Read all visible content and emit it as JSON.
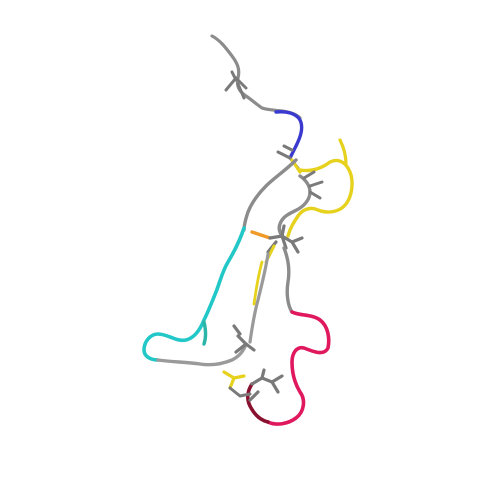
{
  "scene": {
    "background": "#ffffff",
    "subject": "protein-backbone-ribbon",
    "colors": {
      "gray": "#8c8c8c",
      "dark_gray": "#6a6a6a",
      "blue": "#3a3ad0",
      "yellow": "#e6d21c",
      "orange": "#f09a2a",
      "cyan": "#22c7c7",
      "teal": "#2ab5a8",
      "magenta": "#e0195e",
      "dark_red": "#8a1030"
    }
  }
}
